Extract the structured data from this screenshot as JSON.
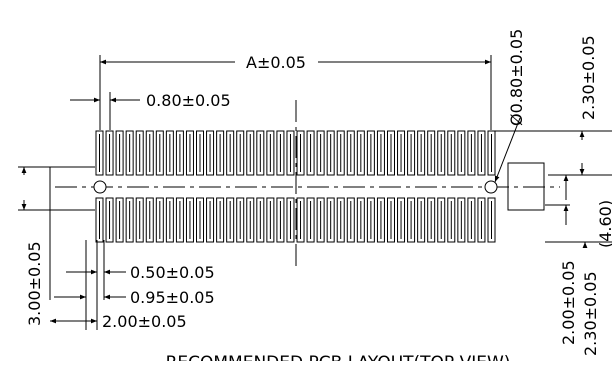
{
  "drawing": {
    "title": "RECOMMENDED PCB LAYOUT(TOP VIEW)",
    "pad_count_per_row": 40,
    "dimensions": {
      "overall_length": "A±0.05",
      "pitch": "0.80±0.05",
      "hole_diameter": "Ø0.80±0.05",
      "right_top_offset": "2.30±0.05",
      "right_total": "(4.60)",
      "row_span": "3.00±0.05",
      "pad_width": "0.50±0.05",
      "edge_offset": "0.95±0.05",
      "hole_offset": "2.00±0.05",
      "right_row_offset": "2.00±0.05",
      "right_bottom_offset": "2.30±0.05"
    }
  }
}
